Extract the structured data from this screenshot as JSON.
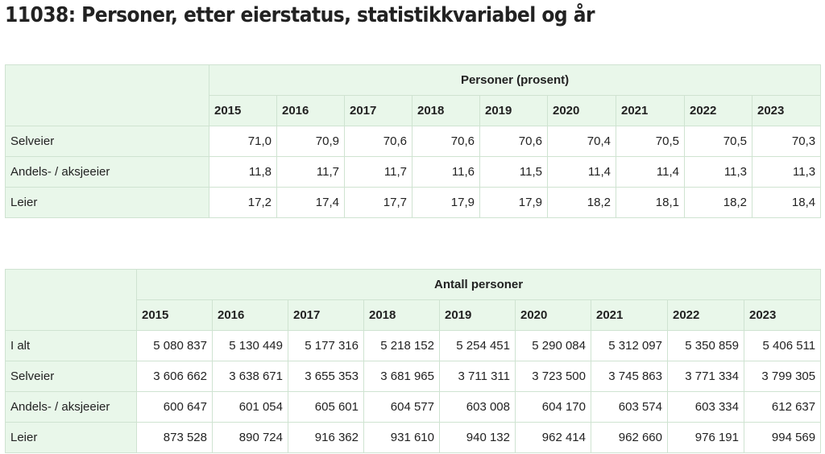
{
  "title": "11038: Personer, etter eierstatus, statistikkvariabel og år",
  "tables": [
    {
      "group_header": "Personer (prosent)",
      "years": [
        "2015",
        "2016",
        "2017",
        "2018",
        "2019",
        "2020",
        "2021",
        "2022",
        "2023"
      ],
      "rows": [
        {
          "label": "Selveier",
          "values": [
            "71,0",
            "70,9",
            "70,6",
            "70,6",
            "70,6",
            "70,4",
            "70,5",
            "70,5",
            "70,3"
          ]
        },
        {
          "label": "Andels- / aksjeeier",
          "values": [
            "11,8",
            "11,7",
            "11,7",
            "11,6",
            "11,5",
            "11,4",
            "11,4",
            "11,3",
            "11,3"
          ]
        },
        {
          "label": "Leier",
          "values": [
            "17,2",
            "17,4",
            "17,7",
            "17,9",
            "17,9",
            "18,2",
            "18,1",
            "18,2",
            "18,4"
          ]
        }
      ]
    },
    {
      "group_header": "Antall personer",
      "years": [
        "2015",
        "2016",
        "2017",
        "2018",
        "2019",
        "2020",
        "2021",
        "2022",
        "2023"
      ],
      "rows": [
        {
          "label": "I alt",
          "values": [
            "5 080 837",
            "5 130 449",
            "5 177 316",
            "5 218 152",
            "5 254 451",
            "5 290 084",
            "5 312 097",
            "5 350 859",
            "5 406 511"
          ]
        },
        {
          "label": "Selveier",
          "values": [
            "3 606 662",
            "3 638 671",
            "3 655 353",
            "3 681 965",
            "3 711 311",
            "3 723 500",
            "3 745 863",
            "3 771 334",
            "3 799 305"
          ]
        },
        {
          "label": "Andels- / aksjeeier",
          "values": [
            "600 647",
            "601 054",
            "605 601",
            "604 577",
            "603 008",
            "604 170",
            "603 574",
            "603 334",
            "612 637"
          ]
        },
        {
          "label": "Leier",
          "values": [
            "873 528",
            "890 724",
            "916 362",
            "931 610",
            "940 132",
            "962 414",
            "962 660",
            "976 191",
            "994 569"
          ]
        }
      ]
    }
  ]
}
